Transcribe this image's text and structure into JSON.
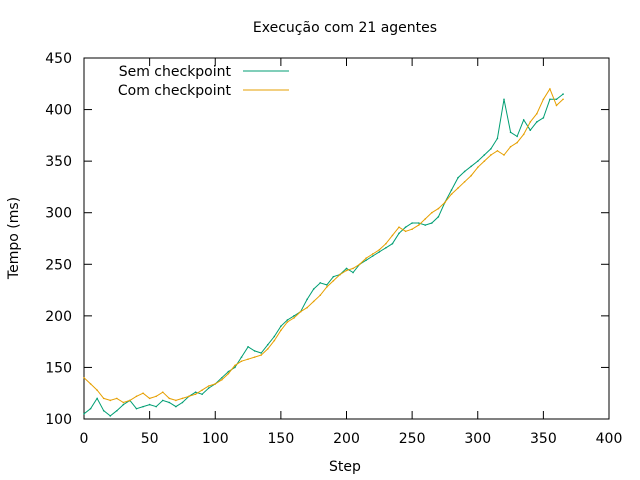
{
  "chart_data": {
    "type": "line",
    "title": "Execução com 21 agentes",
    "xlabel": "Step",
    "ylabel": "Tempo (ms)",
    "xlim": [
      0,
      400
    ],
    "ylim": [
      100,
      450
    ],
    "xticks": [
      0,
      50,
      100,
      150,
      200,
      250,
      300,
      350,
      400
    ],
    "yticks": [
      100,
      150,
      200,
      250,
      300,
      350,
      400,
      450
    ],
    "legend_position": "top-left",
    "grid": false,
    "series": [
      {
        "name": "Sem checkpoint",
        "color": "#009e73",
        "points": [
          [
            0,
            105
          ],
          [
            5,
            110
          ],
          [
            10,
            120
          ],
          [
            15,
            108
          ],
          [
            20,
            103
          ],
          [
            25,
            108
          ],
          [
            30,
            114
          ],
          [
            35,
            118
          ],
          [
            40,
            110
          ],
          [
            45,
            112
          ],
          [
            50,
            114
          ],
          [
            55,
            112
          ],
          [
            60,
            118
          ],
          [
            65,
            116
          ],
          [
            70,
            112
          ],
          [
            75,
            116
          ],
          [
            80,
            122
          ],
          [
            85,
            126
          ],
          [
            90,
            124
          ],
          [
            95,
            130
          ],
          [
            100,
            134
          ],
          [
            105,
            140
          ],
          [
            110,
            146
          ],
          [
            115,
            150
          ],
          [
            120,
            160
          ],
          [
            125,
            170
          ],
          [
            130,
            166
          ],
          [
            135,
            164
          ],
          [
            140,
            172
          ],
          [
            145,
            180
          ],
          [
            150,
            190
          ],
          [
            155,
            196
          ],
          [
            160,
            200
          ],
          [
            165,
            204
          ],
          [
            170,
            216
          ],
          [
            175,
            226
          ],
          [
            180,
            232
          ],
          [
            185,
            230
          ],
          [
            190,
            238
          ],
          [
            195,
            240
          ],
          [
            200,
            246
          ],
          [
            205,
            242
          ],
          [
            210,
            250
          ],
          [
            215,
            254
          ],
          [
            220,
            258
          ],
          [
            225,
            262
          ],
          [
            230,
            266
          ],
          [
            235,
            270
          ],
          [
            240,
            280
          ],
          [
            245,
            286
          ],
          [
            250,
            290
          ],
          [
            255,
            290
          ],
          [
            260,
            288
          ],
          [
            265,
            290
          ],
          [
            270,
            296
          ],
          [
            275,
            310
          ],
          [
            280,
            322
          ],
          [
            285,
            334
          ],
          [
            290,
            340
          ],
          [
            295,
            345
          ],
          [
            300,
            350
          ],
          [
            305,
            356
          ],
          [
            310,
            362
          ],
          [
            315,
            372
          ],
          [
            320,
            410
          ],
          [
            325,
            378
          ],
          [
            330,
            374
          ],
          [
            335,
            390
          ],
          [
            340,
            380
          ],
          [
            345,
            388
          ],
          [
            350,
            392
          ],
          [
            355,
            410
          ],
          [
            360,
            410
          ],
          [
            365,
            415
          ]
        ]
      },
      {
        "name": "Com checkpoint",
        "color": "#e69f00",
        "points": [
          [
            0,
            140
          ],
          [
            5,
            134
          ],
          [
            10,
            128
          ],
          [
            15,
            120
          ],
          [
            20,
            118
          ],
          [
            25,
            120
          ],
          [
            30,
            116
          ],
          [
            35,
            118
          ],
          [
            40,
            122
          ],
          [
            45,
            125
          ],
          [
            50,
            120
          ],
          [
            55,
            122
          ],
          [
            60,
            126
          ],
          [
            65,
            120
          ],
          [
            70,
            118
          ],
          [
            75,
            120
          ],
          [
            80,
            122
          ],
          [
            85,
            124
          ],
          [
            90,
            128
          ],
          [
            95,
            132
          ],
          [
            100,
            134
          ],
          [
            105,
            138
          ],
          [
            110,
            144
          ],
          [
            115,
            152
          ],
          [
            120,
            156
          ],
          [
            125,
            158
          ],
          [
            130,
            160
          ],
          [
            135,
            162
          ],
          [
            140,
            168
          ],
          [
            145,
            176
          ],
          [
            150,
            186
          ],
          [
            155,
            194
          ],
          [
            160,
            198
          ],
          [
            165,
            204
          ],
          [
            170,
            208
          ],
          [
            175,
            214
          ],
          [
            180,
            220
          ],
          [
            185,
            228
          ],
          [
            190,
            234
          ],
          [
            195,
            240
          ],
          [
            200,
            244
          ],
          [
            205,
            246
          ],
          [
            210,
            250
          ],
          [
            215,
            256
          ],
          [
            220,
            260
          ],
          [
            225,
            264
          ],
          [
            230,
            270
          ],
          [
            235,
            278
          ],
          [
            240,
            286
          ],
          [
            245,
            282
          ],
          [
            250,
            284
          ],
          [
            255,
            288
          ],
          [
            260,
            294
          ],
          [
            265,
            300
          ],
          [
            270,
            304
          ],
          [
            275,
            310
          ],
          [
            280,
            318
          ],
          [
            285,
            324
          ],
          [
            290,
            330
          ],
          [
            295,
            336
          ],
          [
            300,
            344
          ],
          [
            305,
            350
          ],
          [
            310,
            356
          ],
          [
            315,
            360
          ],
          [
            320,
            356
          ],
          [
            325,
            364
          ],
          [
            330,
            368
          ],
          [
            335,
            376
          ],
          [
            340,
            388
          ],
          [
            345,
            396
          ],
          [
            350,
            410
          ],
          [
            355,
            420
          ],
          [
            360,
            404
          ],
          [
            365,
            410
          ]
        ]
      }
    ]
  }
}
